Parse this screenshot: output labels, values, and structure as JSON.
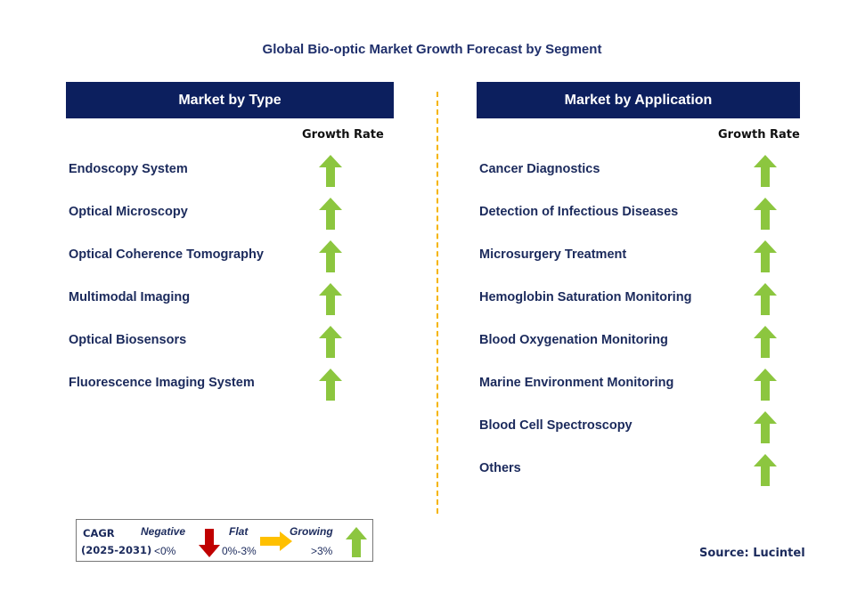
{
  "title": "Global Bio-optic Market Growth Forecast by Segment",
  "colors": {
    "header_bg": "#0c1f5e",
    "arrow_up": "#8cc63f",
    "arrow_down": "#c00000",
    "arrow_flat": "#ffc000",
    "divider": "#f5b400"
  },
  "left_panel": {
    "header": "Market by Type",
    "growth_label": "Growth Rate",
    "items": [
      {
        "label": "Endoscopy System",
        "trend": "up-arrow-icon"
      },
      {
        "label": "Optical Microscopy",
        "trend": "up-arrow-icon"
      },
      {
        "label": "Optical Coherence Tomography",
        "trend": "up-arrow-icon"
      },
      {
        "label": "Multimodal Imaging",
        "trend": "up-arrow-icon"
      },
      {
        "label": "Optical Biosensors",
        "trend": "up-arrow-icon"
      },
      {
        "label": "Fluorescence Imaging System",
        "trend": "up-arrow-icon"
      }
    ]
  },
  "right_panel": {
    "header": "Market by Application",
    "growth_label": "Growth Rate",
    "items": [
      {
        "label": "Cancer Diagnostics",
        "trend": "up-arrow-icon"
      },
      {
        "label": "Detection of Infectious Diseases",
        "trend": "up-arrow-icon"
      },
      {
        "label": "Microsurgery Treatment",
        "trend": "up-arrow-icon"
      },
      {
        "label": "Hemoglobin Saturation Monitoring",
        "trend": "up-arrow-icon"
      },
      {
        "label": "Blood Oxygenation Monitoring",
        "trend": "up-arrow-icon"
      },
      {
        "label": "Marine Environment Monitoring",
        "trend": "up-arrow-icon"
      },
      {
        "label": "Blood Cell Spectroscopy",
        "trend": "up-arrow-icon"
      },
      {
        "label": "Others",
        "trend": "up-arrow-icon"
      }
    ]
  },
  "legend": {
    "cagr": "CAGR",
    "period": "(2025-2031)",
    "negative": {
      "label": "Negative",
      "range": "<0%",
      "icon": "down-arrow-icon"
    },
    "flat": {
      "label": "Flat",
      "range": "0%-3%",
      "icon": "right-arrow-icon"
    },
    "growing": {
      "label": "Growing",
      "range": ">3%",
      "icon": "up-arrow-icon"
    }
  },
  "source": "Source: Lucintel"
}
